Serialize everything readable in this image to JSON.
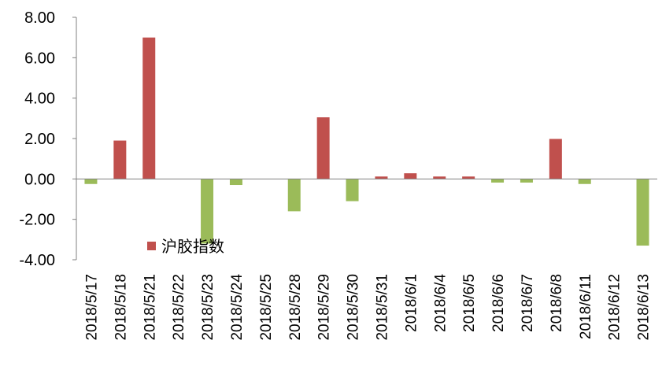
{
  "chart_data": {
    "type": "bar",
    "title": "",
    "xlabel": "",
    "ylabel": "",
    "ylim": [
      -4,
      8
    ],
    "yticks": [
      "8.00",
      "6.00",
      "4.00",
      "2.00",
      "0.00",
      "-2.00",
      "-4.00"
    ],
    "categories": [
      "2018/5/17",
      "2018/5/18",
      "2018/5/21",
      "2018/5/22",
      "2018/5/23",
      "2018/5/24",
      "2018/5/25",
      "2018/5/28",
      "2018/5/29",
      "2018/5/30",
      "2018/5/31",
      "2018/6/1",
      "2018/6/4",
      "2018/6/5",
      "2018/6/6",
      "2018/6/7",
      "2018/6/8",
      "2018/6/11",
      "2018/6/12",
      "2018/6/13"
    ],
    "series": [
      {
        "name": "沪胶指数",
        "values": [
          -0.25,
          1.9,
          7.0,
          0.0,
          -3.2,
          -0.3,
          0.0,
          -1.6,
          3.05,
          -1.1,
          0.12,
          0.28,
          0.12,
          0.12,
          -0.18,
          -0.18,
          1.98,
          -0.25,
          0.0,
          -3.3
        ]
      }
    ],
    "colors": {
      "positive": "#C0504D",
      "negative": "#9BBB59",
      "axis": "#808080"
    },
    "grid": false,
    "legend": {
      "position": "bottom-left",
      "label": "沪胶指数"
    }
  }
}
